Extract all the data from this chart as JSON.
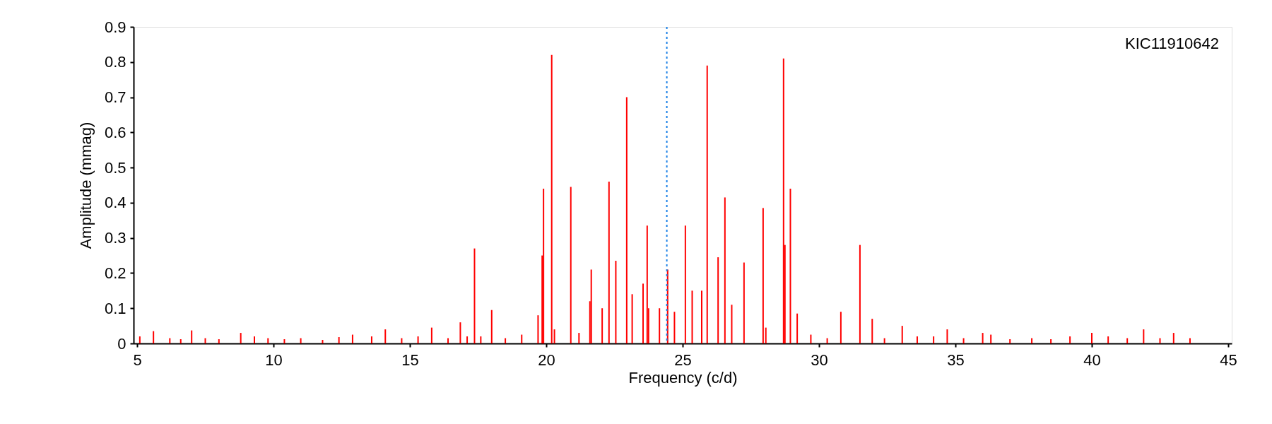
{
  "chart_data": {
    "type": "bar",
    "xlabel": "Frequency (c/d)",
    "ylabel": "Amplitude (mmag)",
    "annotations": [
      "KIC11910642"
    ],
    "x": [
      5.1,
      5.6,
      6.2,
      6.6,
      7.0,
      7.5,
      8.0,
      8.8,
      9.3,
      9.8,
      10.4,
      11.0,
      11.8,
      12.4,
      12.9,
      13.6,
      14.1,
      14.7,
      15.3,
      15.8,
      16.4,
      16.85,
      17.1,
      17.37,
      17.6,
      18.0,
      18.5,
      19.1,
      19.7,
      19.85,
      19.9,
      20.2,
      20.3,
      20.9,
      21.2,
      21.6,
      21.65,
      22.05,
      22.3,
      22.55,
      22.95,
      23.15,
      23.55,
      23.7,
      23.75,
      24.15,
      24.45,
      24.7,
      25.1,
      25.35,
      25.7,
      25.9,
      26.3,
      26.55,
      26.8,
      27.25,
      27.95,
      28.05,
      28.7,
      28.75,
      28.95,
      29.2,
      29.7,
      30.3,
      30.8,
      31.5,
      31.95,
      32.4,
      33.05,
      33.6,
      34.2,
      34.7,
      35.3,
      36.0,
      36.3,
      37.0,
      37.8,
      38.5,
      39.2,
      40.0,
      40.6,
      41.3,
      41.9,
      42.5,
      43.0,
      43.6
    ],
    "series": [
      {
        "color": "#ff0000",
        "values": [
          0.02,
          0.035,
          0.015,
          0.012,
          0.037,
          0.015,
          0.012,
          0.03,
          0.02,
          0.015,
          0.012,
          0.015,
          0.01,
          0.018,
          0.025,
          0.02,
          0.04,
          0.015,
          0.02,
          0.045,
          0.015,
          0.06,
          0.02,
          0.27,
          0.02,
          0.095,
          0.015,
          0.025,
          0.08,
          0.25,
          0.44,
          0.82,
          0.04,
          0.445,
          0.03,
          0.12,
          0.21,
          0.1,
          0.46,
          0.235,
          0.7,
          0.14,
          0.17,
          0.335,
          0.1,
          0.1,
          0.21,
          0.09,
          0.335,
          0.15,
          0.15,
          0.79,
          0.245,
          0.415,
          0.11,
          0.23,
          0.385,
          0.045,
          0.81,
          0.28,
          0.44,
          0.085,
          0.025,
          0.015,
          0.09,
          0.28,
          0.07,
          0.015,
          0.05,
          0.02,
          0.02,
          0.04,
          0.015,
          0.03,
          0.025,
          0.012,
          0.015,
          0.012,
          0.02,
          0.03,
          0.02,
          0.015,
          0.04,
          0.015,
          0.03,
          0.015
        ]
      }
    ],
    "xlim": [
      5,
      45
    ],
    "xticks": [
      5,
      10,
      15,
      20,
      25,
      30,
      35,
      40,
      45
    ],
    "ylim": [
      0,
      0.9
    ],
    "yticks": [
      0,
      0.1,
      0.2,
      0.3,
      0.4,
      0.5,
      0.6,
      0.7,
      0.8,
      0.9
    ],
    "ref_lines": [
      {
        "axis": "x",
        "value": 24.42,
        "color": "#1a80e6",
        "line_style": "dotted"
      }
    ],
    "grid": false
  }
}
